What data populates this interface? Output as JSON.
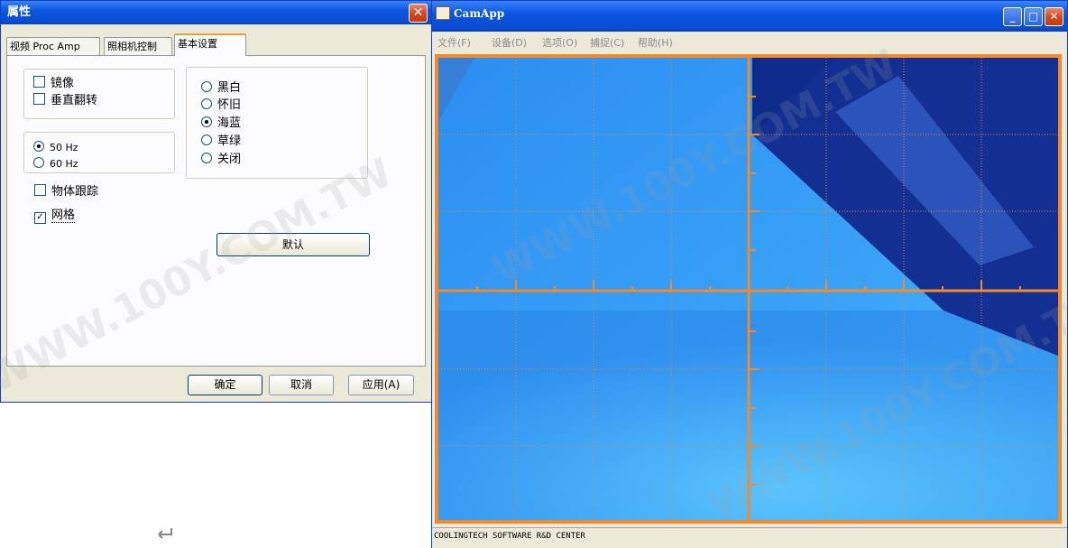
{
  "dialog": {
    "title": "属性",
    "close_label": "✕",
    "tabs": [
      {
        "label": "视频 Proc Amp"
      },
      {
        "label": "照相机控制"
      },
      {
        "label": "基本设置"
      }
    ],
    "flip_group": {
      "mirror": {
        "label": "镜像",
        "checked": false
      },
      "vflip": {
        "label": "垂直翻转",
        "checked": false
      }
    },
    "freq_group": {
      "hz50": {
        "label": "50 Hz",
        "selected": true
      },
      "hz60": {
        "label": "60 Hz",
        "selected": false
      }
    },
    "effect_group": {
      "items": [
        {
          "label": "黑白",
          "selected": false
        },
        {
          "label": "怀旧",
          "selected": false
        },
        {
          "label": "海蓝",
          "selected": true
        },
        {
          "label": "草绿",
          "selected": false
        },
        {
          "label": "关闭",
          "selected": false
        }
      ]
    },
    "tracking": {
      "label": "物体跟踪",
      "checked": false
    },
    "grid": {
      "label": "网格",
      "checked": true,
      "mark": "✓"
    },
    "default_button": "默认",
    "ok_button": "确定",
    "cancel_button": "取消",
    "apply_button": "应用(A)"
  },
  "cam": {
    "title": "CamApp",
    "min_label": "_",
    "max_label": "□",
    "close_label": "✕",
    "menu": [
      "文件(F)",
      "设备(D)",
      "选项(O)",
      "捕捉(C)",
      "帮助(H)"
    ],
    "status": "COOLINGTECH SOFTWARE R&D CENTER",
    "grid_color": "#f08a2a",
    "video_color": "#2f8ef0"
  },
  "desktop": {
    "return_icon": "return-arrow-icon"
  }
}
